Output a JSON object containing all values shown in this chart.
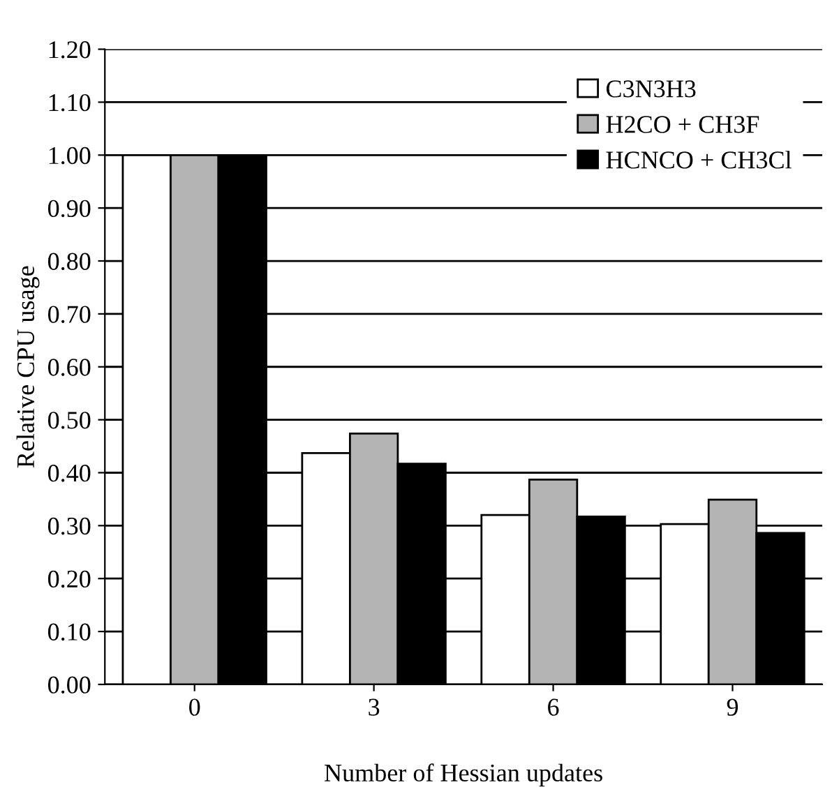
{
  "chart_data": {
    "type": "bar",
    "xlabel": "Number of Hessian updates",
    "ylabel": "Relative CPU usage",
    "categories": [
      "0",
      "3",
      "6",
      "9"
    ],
    "series": [
      {
        "name": "C3N3H3",
        "color": "#ffffff",
        "values": [
          1.0,
          0.437,
          0.32,
          0.303
        ]
      },
      {
        "name": "H2CO + CH3F",
        "color": "#b4b4b4",
        "values": [
          1.0,
          0.474,
          0.387,
          0.349
        ]
      },
      {
        "name": "HCNCO + CH3Cl",
        "color": "#000000",
        "values": [
          1.0,
          0.417,
          0.317,
          0.286
        ]
      }
    ],
    "ylim": [
      0,
      1.2
    ],
    "yticks": [
      {
        "value": 0,
        "label": "0.00"
      },
      {
        "value": 0.1,
        "label": "0.10"
      },
      {
        "value": 0.2,
        "label": "0.20"
      },
      {
        "value": 0.3,
        "label": "0.30"
      },
      {
        "value": 0.4,
        "label": "0.40"
      },
      {
        "value": 0.5,
        "label": "0.50"
      },
      {
        "value": 0.6,
        "label": "0.60"
      },
      {
        "value": 0.7,
        "label": "0.70"
      },
      {
        "value": 0.8,
        "label": "0.80"
      },
      {
        "value": 0.9,
        "label": "0.90"
      },
      {
        "value": 1.0,
        "label": "1.00"
      },
      {
        "value": 1.1,
        "label": "1.10"
      },
      {
        "value": 1.2,
        "label": "1.20"
      }
    ],
    "grid": "y",
    "legend": "top right"
  }
}
